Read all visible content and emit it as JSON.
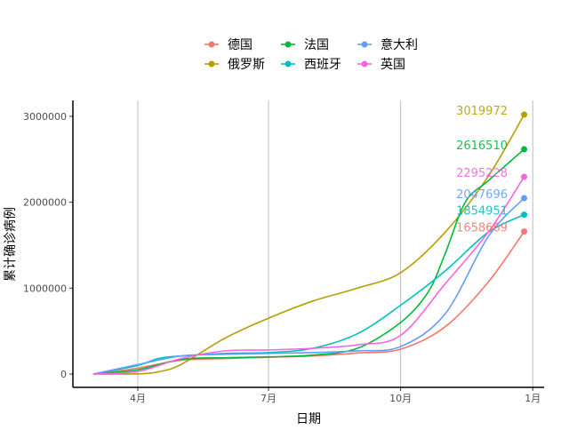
{
  "chart_data": {
    "type": "line",
    "title": "",
    "xlabel": "日期",
    "ylabel": "累计确诊病例",
    "x_ticks": [
      "4月",
      "7月",
      "10月",
      "1月"
    ],
    "x_tick_dates": [
      "2020-04-01",
      "2020-07-01",
      "2020-10-01",
      "2021-01-01"
    ],
    "y_ticks": [
      0,
      1000000,
      2000000,
      3000000
    ],
    "ylim": [
      0,
      3150000
    ],
    "xlim": [
      "2020-02-10",
      "2021-01-10"
    ],
    "grid": "vertical major gridlines",
    "legend_position": "top",
    "series": [
      {
        "name": "德国",
        "color": "#F8766D",
        "end_label": "1658669",
        "points": [
          [
            "2020-03-01",
            0
          ],
          [
            "2020-04-01",
            70000
          ],
          [
            "2020-05-01",
            160000
          ],
          [
            "2020-06-01",
            180000
          ],
          [
            "2020-07-01",
            195000
          ],
          [
            "2020-08-01",
            210000
          ],
          [
            "2020-09-01",
            245000
          ],
          [
            "2020-10-01",
            290000
          ],
          [
            "2020-11-01",
            550000
          ],
          [
            "2020-12-01",
            1070000
          ],
          [
            "2020-12-26",
            1658669
          ]
        ]
      },
      {
        "name": "俄罗斯",
        "color": "#B79F00",
        "end_label": "3019972",
        "points": [
          [
            "2020-03-01",
            0
          ],
          [
            "2020-04-01",
            2000
          ],
          [
            "2020-04-15",
            25000
          ],
          [
            "2020-05-01",
            110000
          ],
          [
            "2020-06-01",
            420000
          ],
          [
            "2020-07-01",
            650000
          ],
          [
            "2020-08-01",
            850000
          ],
          [
            "2020-09-01",
            1000000
          ],
          [
            "2020-10-01",
            1180000
          ],
          [
            "2020-11-01",
            1650000
          ],
          [
            "2020-12-01",
            2300000
          ],
          [
            "2020-12-26",
            3019972
          ]
        ]
      },
      {
        "name": "法国",
        "color": "#00BA38",
        "end_label": "2616510",
        "points": [
          [
            "2020-03-01",
            0
          ],
          [
            "2020-04-01",
            50000
          ],
          [
            "2020-05-01",
            170000
          ],
          [
            "2020-06-01",
            190000
          ],
          [
            "2020-07-01",
            200000
          ],
          [
            "2020-08-01",
            220000
          ],
          [
            "2020-09-01",
            300000
          ],
          [
            "2020-10-01",
            600000
          ],
          [
            "2020-10-20",
            950000
          ],
          [
            "2020-11-01",
            1400000
          ],
          [
            "2020-11-15",
            2000000
          ],
          [
            "2020-12-01",
            2250000
          ],
          [
            "2020-12-26",
            2616510
          ]
        ]
      },
      {
        "name": "西班牙",
        "color": "#00BFC4",
        "end_label": "1854951",
        "points": [
          [
            "2020-03-01",
            0
          ],
          [
            "2020-04-01",
            100000
          ],
          [
            "2020-04-15",
            180000
          ],
          [
            "2020-05-01",
            210000
          ],
          [
            "2020-06-01",
            240000
          ],
          [
            "2020-07-01",
            250000
          ],
          [
            "2020-08-01",
            300000
          ],
          [
            "2020-09-01",
            470000
          ],
          [
            "2020-10-01",
            800000
          ],
          [
            "2020-11-01",
            1200000
          ],
          [
            "2020-12-01",
            1650000
          ],
          [
            "2020-12-26",
            1854951
          ]
        ]
      },
      {
        "name": "意大利",
        "color": "#619CFF",
        "end_label": "2047696",
        "points": [
          [
            "2020-03-01",
            0
          ],
          [
            "2020-04-01",
            110000
          ],
          [
            "2020-05-01",
            210000
          ],
          [
            "2020-06-01",
            230000
          ],
          [
            "2020-07-01",
            240000
          ],
          [
            "2020-08-01",
            250000
          ],
          [
            "2020-09-01",
            270000
          ],
          [
            "2020-10-01",
            320000
          ],
          [
            "2020-11-01",
            700000
          ],
          [
            "2020-12-01",
            1600000
          ],
          [
            "2020-12-26",
            2047696
          ]
        ]
      },
      {
        "name": "英国",
        "color": "#F564E3",
        "end_label": "2295228",
        "points": [
          [
            "2020-03-01",
            0
          ],
          [
            "2020-04-01",
            30000
          ],
          [
            "2020-05-01",
            180000
          ],
          [
            "2020-06-01",
            270000
          ],
          [
            "2020-07-01",
            280000
          ],
          [
            "2020-08-01",
            300000
          ],
          [
            "2020-09-01",
            340000
          ],
          [
            "2020-10-01",
            450000
          ],
          [
            "2020-11-01",
            1050000
          ],
          [
            "2020-12-01",
            1650000
          ],
          [
            "2020-12-26",
            2295228
          ]
        ]
      }
    ]
  }
}
